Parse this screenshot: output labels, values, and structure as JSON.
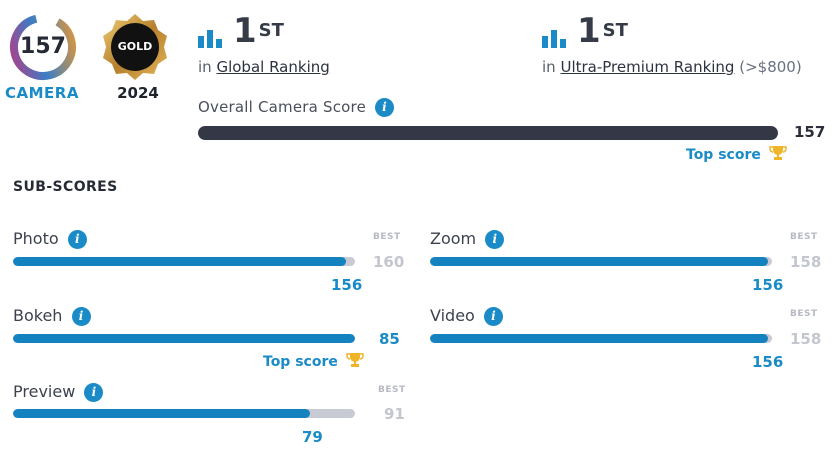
{
  "badge": {
    "score": "157",
    "label": "CAMERA",
    "medal_text": "GOLD",
    "year": "2024",
    "colors": {
      "ring_start": "#b43a8c",
      "ring_mid": "#3c7fc4",
      "ring_end": "#f39a2b",
      "gold": "#c9963b"
    }
  },
  "rankings": [
    {
      "position": "1",
      "suffix": "ST",
      "prefix": "in",
      "link": "Global Ranking",
      "note": ""
    },
    {
      "position": "1",
      "suffix": "ST",
      "prefix": "in",
      "link": "Ultra-Premium Ranking",
      "note": "(>$800)"
    }
  ],
  "overall": {
    "label": "Overall Camera Score",
    "value": "157",
    "fill_fraction": 1.0,
    "top_score_label": "Top score"
  },
  "subscores": {
    "title": "SUB-SCORES",
    "best_label": "BEST",
    "items": {
      "photo": {
        "label": "Photo",
        "value": "156",
        "best": "160",
        "fraction": 0.975
      },
      "zoom": {
        "label": "Zoom",
        "value": "156",
        "best": "158",
        "fraction": 0.987
      },
      "bokeh": {
        "label": "Bokeh",
        "value": "85",
        "best": "",
        "fraction": 1.0,
        "top_score_label": "Top score"
      },
      "video": {
        "label": "Video",
        "value": "156",
        "best": "158",
        "fraction": 0.987
      },
      "preview": {
        "label": "Preview",
        "value": "79",
        "best": "91",
        "fraction": 0.868
      }
    }
  },
  "icons": {
    "info": "info-icon",
    "ranking": "bar-chart-icon",
    "trophy": "trophy-icon"
  }
}
